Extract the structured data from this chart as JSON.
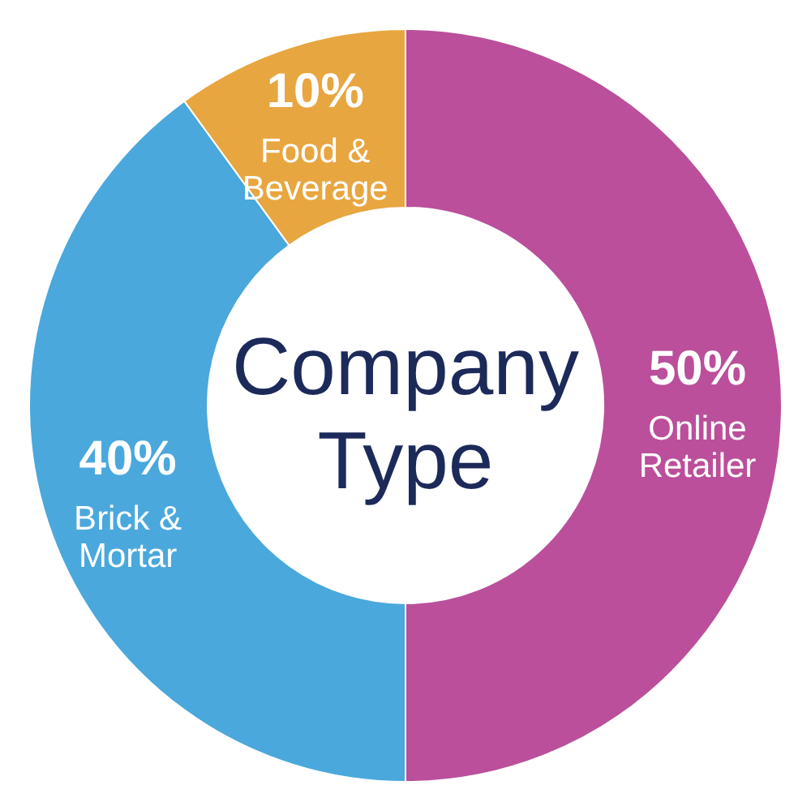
{
  "chart_data": {
    "type": "donut",
    "title": "Company\nType",
    "categories": [
      "Online\nRetailer",
      "Brick &\nMortar",
      "Food &\nBeverage"
    ],
    "values": [
      50,
      40,
      10
    ],
    "value_labels": [
      "50%",
      "40%",
      "10%"
    ],
    "colors": [
      "#bb4f9b",
      "#4aa8dc",
      "#e8a640"
    ]
  }
}
